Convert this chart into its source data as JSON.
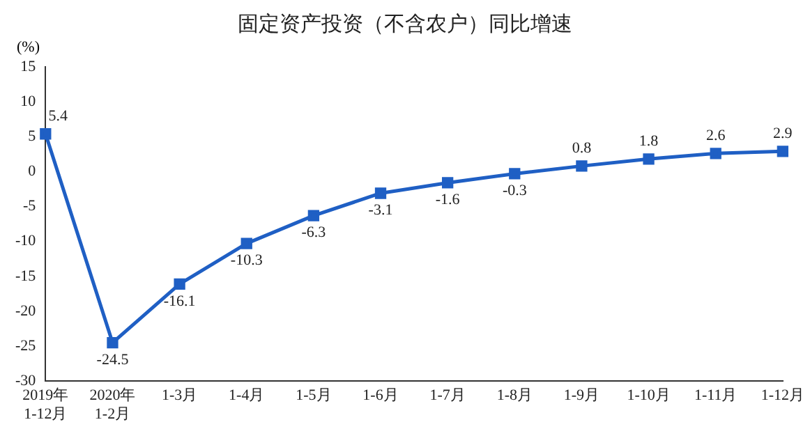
{
  "chart_data": {
    "type": "line",
    "title": "固定资产投资（不含农户）同比增速",
    "ylabel": "(%)",
    "categories": [
      "2019年\n1-12月",
      "2020年\n1-2月",
      "1-3月",
      "1-4月",
      "1-5月",
      "1-6月",
      "1-7月",
      "1-8月",
      "1-9月",
      "1-10月",
      "1-11月",
      "1-12月"
    ],
    "values": [
      5.4,
      -24.5,
      -16.1,
      -10.3,
      -6.3,
      -3.1,
      -1.6,
      -0.3,
      0.8,
      1.8,
      2.6,
      2.9
    ],
    "color": "#1f5fc4",
    "marker": "square",
    "line_style": "solid",
    "grid": false,
    "legend": false,
    "data_labels": true,
    "ylim": [
      -30,
      15
    ],
    "yticks": [
      -30,
      -25,
      -20,
      -15,
      -10,
      -5,
      0,
      5,
      10,
      15
    ]
  }
}
